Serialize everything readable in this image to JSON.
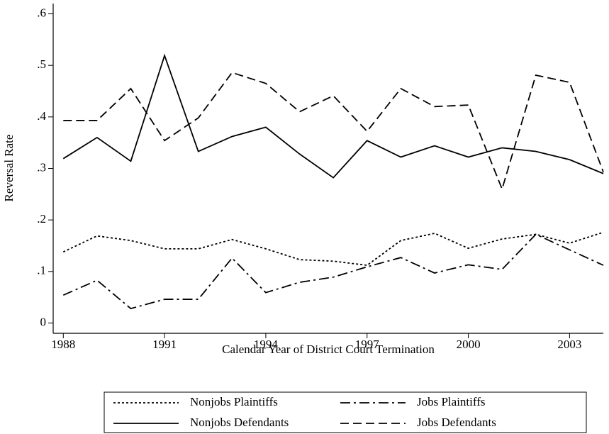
{
  "chart_data": {
    "type": "line",
    "xlabel": "Calendar Year of District Court Termination",
    "ylabel": "Reversal Rate",
    "x": [
      1988,
      1989,
      1990,
      1991,
      1992,
      1993,
      1994,
      1995,
      1996,
      1997,
      1998,
      1999,
      2000,
      2001,
      2002,
      2003,
      2004
    ],
    "series": [
      {
        "name": "Nonjobs Plaintiffs",
        "color": "#000000",
        "style": "dotted",
        "values": [
          0.138,
          0.169,
          0.16,
          0.144,
          0.144,
          0.162,
          0.144,
          0.123,
          0.12,
          0.112,
          0.16,
          0.174,
          0.145,
          0.163,
          0.172,
          0.155,
          0.176
        ]
      },
      {
        "name": "Jobs Plaintiffs",
        "color": "#000000",
        "style": "dashdot",
        "values": [
          0.054,
          0.083,
          0.028,
          0.046,
          0.046,
          0.126,
          0.059,
          0.079,
          0.089,
          0.109,
          0.127,
          0.097,
          0.113,
          0.104,
          0.172,
          0.142,
          0.112
        ]
      },
      {
        "name": "Nonjobs Defendants",
        "color": "#000000",
        "style": "solid",
        "values": [
          0.319,
          0.36,
          0.314,
          0.519,
          0.333,
          0.362,
          0.38,
          0.328,
          0.282,
          0.354,
          0.322,
          0.344,
          0.322,
          0.34,
          0.333,
          0.317,
          0.29
        ]
      },
      {
        "name": "Jobs Defendants",
        "color": "#000000",
        "style": "dashed",
        "values": [
          0.393,
          0.393,
          0.455,
          0.354,
          0.398,
          0.486,
          0.465,
          0.41,
          0.441,
          0.372,
          0.455,
          0.42,
          0.423,
          0.26,
          0.481,
          0.467,
          0.293
        ]
      }
    ],
    "xlim": [
      1987.7,
      2004
    ],
    "xticks": [
      1988,
      1991,
      1994,
      1997,
      2000,
      2003
    ],
    "ylim": [
      -0.02,
      0.62
    ],
    "yticks": [
      0,
      {
        "value": 0.1,
        "label": ".1"
      },
      {
        "value": 0.2,
        "label": ".2"
      },
      {
        "value": 0.3,
        "label": ".3"
      },
      {
        "value": 0.4,
        "label": ".4"
      },
      {
        "value": 0.5,
        "label": ".5"
      },
      {
        "value": 0.6,
        "label": ".6"
      }
    ],
    "grid": false,
    "legend": "bottom"
  }
}
